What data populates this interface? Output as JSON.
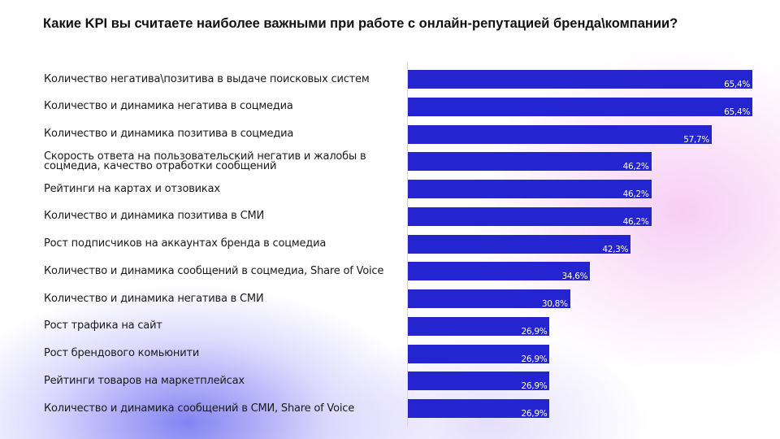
{
  "chart_data": {
    "type": "bar",
    "orientation": "horizontal",
    "title": "Какие KPI вы считаете наиболее важными при работе с онлайн-репутацией бренда\\компании?",
    "categories": [
      "Количество негатива\\позитива в выдаче поисковых систем",
      "Количество и динамика негатива в соцмедиа",
      "Количество и динамика позитива в соцмедиа",
      "Скорость ответа на пользовательский негатив и жалобы в соцмедиа, качество отработки сообщений",
      "Рейтинги на картах и отзовиках",
      "Количество и динамика позитива в СМИ",
      "Рост подписчиков на аккаунтах бренда в соцмедиа",
      "Количество и динамика сообщений в соцмедиа, Share of Voice",
      "Количество и динамика негатива в СМИ",
      "Рост трафика на сайт",
      "Рост брендового комьюнити",
      "Рейтинги товаров на маркетплейсах",
      "Количество и динамика сообщений в СМИ, Share of Voice"
    ],
    "values": [
      65.4,
      65.4,
      57.7,
      46.2,
      46.2,
      46.2,
      42.3,
      34.6,
      30.8,
      26.9,
      26.9,
      26.9,
      26.9
    ],
    "value_labels": [
      "65,4%",
      "65,4%",
      "57,7%",
      "46,2%",
      "46,2%",
      "46,2%",
      "42,3%",
      "34,6%",
      "30,8%",
      "26,9%",
      "26,9%",
      "26,9%",
      "26,9%"
    ],
    "xlim": [
      0,
      65.4
    ],
    "grid": false,
    "legend": "none",
    "bar_color": "#2424d0"
  }
}
